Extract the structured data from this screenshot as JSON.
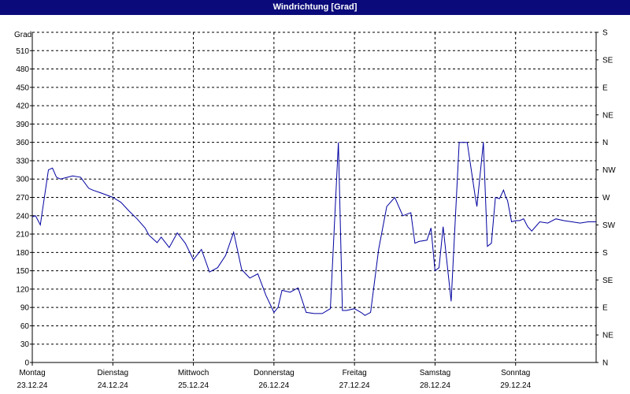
{
  "window": {
    "title": "Windrichtung [Grad]"
  },
  "chart_data": {
    "type": "line",
    "title": "Windrichtung [Grad]",
    "ylabel": "Grad",
    "ylim": [
      0,
      540
    ],
    "y_ticks": [
      0,
      30,
      60,
      90,
      120,
      150,
      180,
      210,
      240,
      270,
      300,
      330,
      360,
      390,
      420,
      450,
      480,
      510
    ],
    "right_axis_labels": [
      "N",
      "NE",
      "E",
      "SE",
      "S",
      "SW",
      "W",
      "NW",
      "N",
      "NE",
      "E",
      "SE",
      "S",
      "SW",
      "W",
      "NW",
      "N",
      "NE",
      "E",
      "SE",
      "S",
      "SE",
      "E",
      "NE",
      "N"
    ],
    "right_axis_values": [
      0,
      45,
      90,
      135,
      180,
      225,
      270,
      315,
      360,
      405,
      450,
      495,
      540
    ],
    "right_axis_visible_labels": [
      "N",
      "NE",
      "E",
      "SE",
      "S",
      "SW",
      "W",
      "NW",
      "N",
      "NE",
      "E",
      "SE",
      "S"
    ],
    "categories": [
      {
        "day": "Montag",
        "date": "23.12.24"
      },
      {
        "day": "Dienstag",
        "date": "24.12.24"
      },
      {
        "day": "Mittwoch",
        "date": "25.12.24"
      },
      {
        "day": "Donnerstag",
        "date": "26.12.24"
      },
      {
        "day": "Freitag",
        "date": "27.12.24"
      },
      {
        "day": "Samstag",
        "date": "28.12.24"
      },
      {
        "day": "Sonntag",
        "date": "29.12.24"
      }
    ],
    "xlim": [
      0,
      7.0
    ],
    "grid": true,
    "colors": {
      "line": "#0000a0",
      "grid": "#000000",
      "title_bg": "#0a0a7a"
    },
    "series": [
      {
        "x": [
          0,
          0.04,
          0.1,
          0.2,
          0.25,
          0.3,
          0.35,
          0.5,
          0.6,
          0.7,
          0.75,
          0.9,
          1.0,
          1.1,
          1.2,
          1.3,
          1.4,
          1.45,
          1.55,
          1.6,
          1.7,
          1.8,
          1.9,
          2.0,
          2.1,
          2.2,
          2.3,
          2.4,
          2.5,
          2.6,
          2.7,
          2.8,
          2.9,
          3.0,
          3.05,
          3.1,
          3.2,
          3.3,
          3.4,
          3.5,
          3.6,
          3.7,
          3.8,
          3.85,
          3.9,
          4.0,
          4.08,
          4.1,
          4.13,
          4.2,
          4.3,
          4.4,
          4.5,
          4.6,
          4.7,
          4.75,
          4.8,
          4.9,
          4.95,
          5.0,
          5.05,
          5.1,
          5.2,
          5.3,
          5.4,
          5.5,
          5.52,
          5.6,
          5.65,
          5.7,
          5.75,
          5.8,
          5.85,
          5.88,
          5.9,
          5.95,
          6.0,
          6.05,
          6.1,
          6.15,
          6.2,
          6.3,
          6.4,
          6.5,
          6.6,
          6.7,
          6.8,
          6.9,
          7.0
        ],
        "values": [
          238,
          240,
          225,
          315,
          318,
          303,
          300,
          305,
          303,
          285,
          282,
          275,
          270,
          262,
          248,
          235,
          220,
          208,
          196,
          205,
          188,
          212,
          195,
          168,
          185,
          148,
          155,
          175,
          213,
          152,
          138,
          145,
          110,
          82,
          90,
          118,
          115,
          122,
          82,
          80,
          80,
          88,
          360,
          85,
          85,
          88,
          82,
          80,
          77,
          82,
          185,
          255,
          270,
          240,
          245,
          195,
          198,
          200,
          220,
          150,
          155,
          222,
          100,
          360,
          360,
          270,
          255,
          360,
          190,
          195,
          270,
          268,
          282,
          270,
          265,
          230,
          232,
          232,
          235,
          222,
          215,
          230,
          228,
          235,
          232,
          230,
          228,
          230,
          230
        ]
      }
    ]
  }
}
